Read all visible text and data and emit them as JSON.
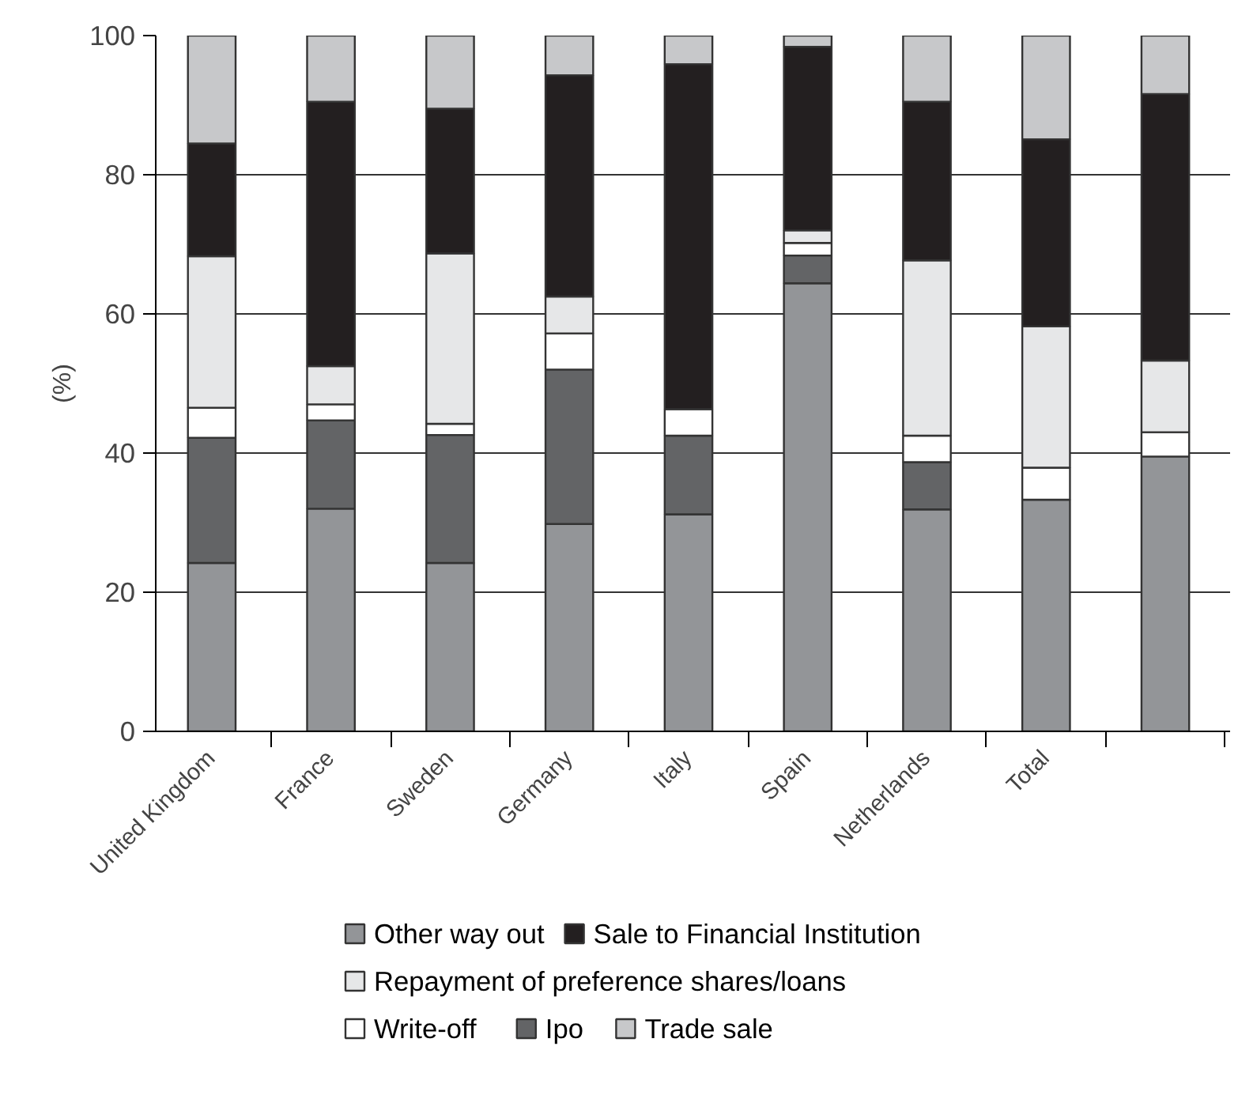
{
  "chart_data": {
    "type": "bar",
    "stacked": true,
    "ylabel": "(%)",
    "categories": [
      "United Kingdom",
      "France",
      "Sweden",
      "Germany",
      "Italy",
      "Spain",
      "Netherlands",
      "Total",
      null
    ],
    "series": [
      {
        "name": "Other way out",
        "color": "#939598",
        "values": [
          24.2,
          32,
          24.2,
          29.8,
          31.2,
          64.4,
          31.9,
          33.3,
          39.5
        ]
      },
      {
        "name": "Ipo",
        "color": "#636466",
        "values": [
          18,
          12.7,
          18.4,
          22.2,
          11.3,
          4,
          6.8,
          null,
          null
        ]
      },
      {
        "name": "Write-off",
        "color": "#ffffff",
        "values": [
          4.3,
          2.3,
          1.6,
          5.2,
          3.8,
          1.8,
          3.8,
          4.6,
          3.5
        ]
      },
      {
        "name": "Repayment of preference shares/loans",
        "color": "#e6e7e8",
        "values": [
          21.8,
          5.5,
          24.5,
          5.3,
          null,
          1.8,
          25.2,
          20.3,
          10.3
        ]
      },
      {
        "name": "Sale to Financial Institution",
        "color": "#231f20",
        "values": [
          16.2,
          38,
          20.8,
          31.8,
          49.6,
          26.4,
          22.8,
          26.9,
          38.3
        ]
      },
      {
        "name": "Trade sale",
        "color": "#c7c8ca",
        "values": [
          15.5,
          9.5,
          10.5,
          5.7,
          4.2,
          1.6,
          9.5,
          14.9,
          8.4
        ]
      }
    ],
    "ylim": [
      0,
      100
    ],
    "yticks": [
      0,
      20,
      40,
      60,
      80,
      100
    ],
    "grid": "y",
    "legend": "bottom"
  }
}
